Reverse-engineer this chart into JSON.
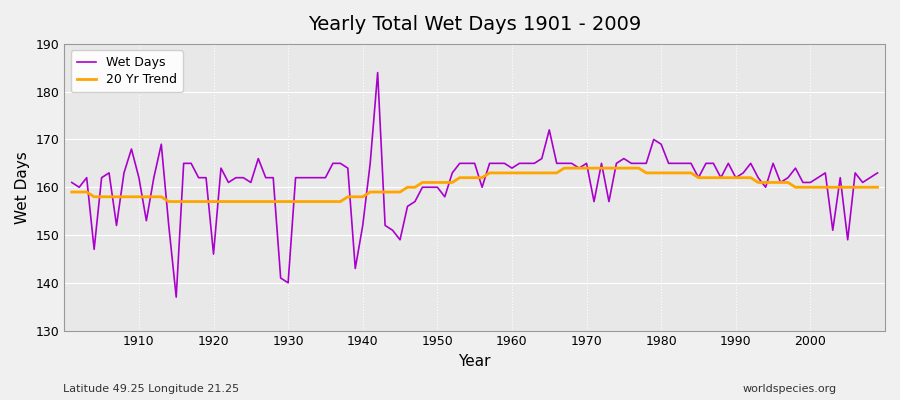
{
  "title": "Yearly Total Wet Days 1901 - 2009",
  "xlabel": "Year",
  "ylabel": "Wet Days",
  "subtitle": "Latitude 49.25 Longitude 21.25",
  "watermark": "worldspecies.org",
  "ylim": [
    130,
    190
  ],
  "yticks": [
    130,
    140,
    150,
    160,
    170,
    180,
    190
  ],
  "bg_color": "#e8e8e8",
  "wet_days_color": "#aa00cc",
  "trend_color": "#ffa500",
  "years": [
    1901,
    1902,
    1903,
    1904,
    1905,
    1906,
    1907,
    1908,
    1909,
    1910,
    1911,
    1912,
    1913,
    1914,
    1915,
    1916,
    1917,
    1918,
    1919,
    1920,
    1921,
    1922,
    1923,
    1924,
    1925,
    1926,
    1927,
    1928,
    1929,
    1930,
    1931,
    1932,
    1933,
    1934,
    1935,
    1936,
    1937,
    1938,
    1939,
    1940,
    1941,
    1942,
    1943,
    1944,
    1945,
    1946,
    1947,
    1948,
    1949,
    1950,
    1951,
    1952,
    1953,
    1954,
    1955,
    1956,
    1957,
    1958,
    1959,
    1960,
    1961,
    1962,
    1963,
    1964,
    1965,
    1966,
    1967,
    1968,
    1969,
    1970,
    1971,
    1972,
    1973,
    1974,
    1975,
    1976,
    1977,
    1978,
    1979,
    1980,
    1981,
    1982,
    1983,
    1984,
    1985,
    1986,
    1987,
    1988,
    1989,
    1990,
    1991,
    1992,
    1993,
    1994,
    1995,
    1996,
    1997,
    1998,
    1999,
    2000,
    2001,
    2002,
    2003,
    2004,
    2005,
    2006,
    2007,
    2008,
    2009
  ],
  "wet_days": [
    161,
    160,
    162,
    147,
    162,
    163,
    152,
    163,
    168,
    162,
    153,
    162,
    169,
    152,
    137,
    165,
    165,
    162,
    162,
    146,
    164,
    161,
    162,
    162,
    161,
    166,
    162,
    162,
    141,
    140,
    162,
    162,
    162,
    162,
    162,
    165,
    165,
    164,
    143,
    152,
    165,
    184,
    152,
    151,
    149,
    156,
    157,
    160,
    160,
    160,
    158,
    163,
    165,
    165,
    165,
    160,
    165,
    165,
    165,
    164,
    165,
    165,
    165,
    166,
    172,
    165,
    165,
    165,
    164,
    165,
    157,
    165,
    157,
    165,
    166,
    165,
    165,
    165,
    170,
    169,
    165,
    165,
    165,
    165,
    162,
    165,
    165,
    162,
    165,
    162,
    163,
    165,
    162,
    160,
    165,
    161,
    162,
    164,
    161,
    161,
    162,
    163,
    151,
    162,
    149,
    163,
    161,
    162,
    163
  ],
  "trend": [
    159,
    159,
    159,
    158,
    158,
    158,
    158,
    158,
    158,
    158,
    158,
    158,
    158,
    157,
    157,
    157,
    157,
    157,
    157,
    157,
    157,
    157,
    157,
    157,
    157,
    157,
    157,
    157,
    157,
    157,
    157,
    157,
    157,
    157,
    157,
    157,
    157,
    158,
    158,
    158,
    159,
    159,
    159,
    159,
    159,
    160,
    160,
    161,
    161,
    161,
    161,
    161,
    162,
    162,
    162,
    162,
    163,
    163,
    163,
    163,
    163,
    163,
    163,
    163,
    163,
    163,
    164,
    164,
    164,
    164,
    164,
    164,
    164,
    164,
    164,
    164,
    164,
    163,
    163,
    163,
    163,
    163,
    163,
    163,
    162,
    162,
    162,
    162,
    162,
    162,
    162,
    162,
    161,
    161,
    161,
    161,
    161,
    160,
    160,
    160,
    160,
    160,
    160,
    160,
    160,
    160,
    160,
    160,
    160
  ]
}
